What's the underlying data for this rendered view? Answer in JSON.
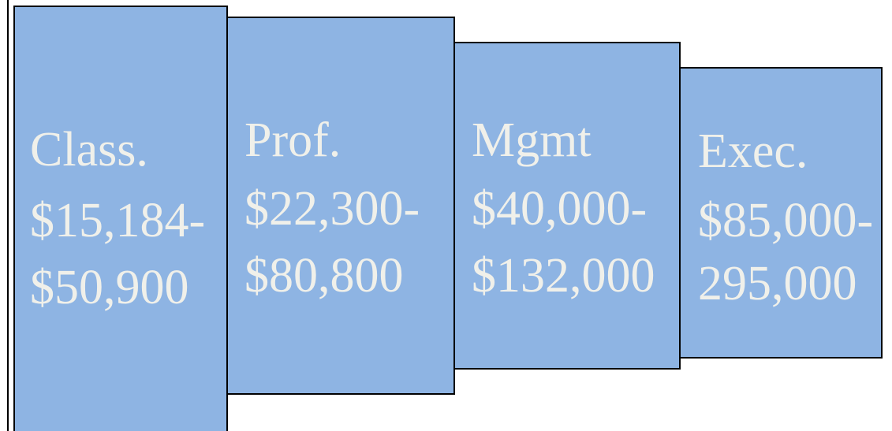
{
  "boxes": [
    {
      "lines": [
        "Class.",
        "$15,184-",
        "$50,900"
      ]
    },
    {
      "lines": [
        "Prof.",
        "$22,300-",
        "$80,800"
      ]
    },
    {
      "lines": [
        "Mgmt",
        "$40,000-",
        "$132,000"
      ]
    },
    {
      "lines": [
        "Exec.",
        "$85,000-",
        "295,000"
      ]
    }
  ]
}
